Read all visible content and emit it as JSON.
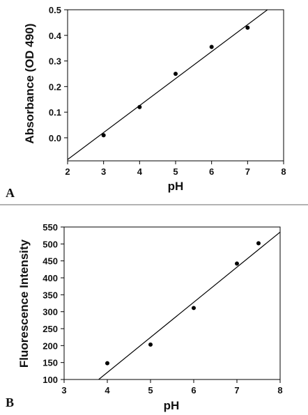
{
  "chart_data": [
    {
      "panel_label": "A",
      "type": "scatter",
      "xlabel": "pH",
      "ylabel": "Absorbance (OD 490)",
      "xlim": [
        2,
        8
      ],
      "ylim": [
        -0.09,
        0.5
      ],
      "xticks": [
        "2",
        "3",
        "4",
        "5",
        "6",
        "7",
        "8"
      ],
      "yticks": [
        "0.0",
        "0.1",
        "0.2",
        "0.3",
        "0.4",
        "0.5"
      ],
      "ytick_values": [
        0.0,
        0.1,
        0.2,
        0.3,
        0.4,
        0.5
      ],
      "points": [
        {
          "x": 3,
          "y": 0.01
        },
        {
          "x": 4,
          "y": 0.12
        },
        {
          "x": 5,
          "y": 0.25
        },
        {
          "x": 6,
          "y": 0.355
        },
        {
          "x": 7,
          "y": 0.43
        }
      ],
      "fit_line": [
        {
          "x": 2,
          "y": -0.085
        },
        {
          "x": 7.55,
          "y": 0.5
        }
      ],
      "grid": false
    },
    {
      "panel_label": "B",
      "type": "scatter",
      "xlabel": "pH",
      "ylabel": "Fluorescence Intensity",
      "xlim": [
        3,
        8
      ],
      "ylim": [
        100,
        550
      ],
      "xticks": [
        "3",
        "4",
        "5",
        "6",
        "7",
        "8"
      ],
      "yticks": [
        "100",
        "150",
        "200",
        "250",
        "300",
        "350",
        "400",
        "450",
        "500",
        "550"
      ],
      "ytick_values": [
        100,
        150,
        200,
        250,
        300,
        350,
        400,
        450,
        500,
        550
      ],
      "points": [
        {
          "x": 4,
          "y": 148
        },
        {
          "x": 5,
          "y": 203
        },
        {
          "x": 6,
          "y": 311
        },
        {
          "x": 7,
          "y": 442
        },
        {
          "x": 7.5,
          "y": 502
        }
      ],
      "fit_line": [
        {
          "x": 3.8,
          "y": 100
        },
        {
          "x": 8,
          "y": 535
        }
      ],
      "grid": false
    }
  ]
}
